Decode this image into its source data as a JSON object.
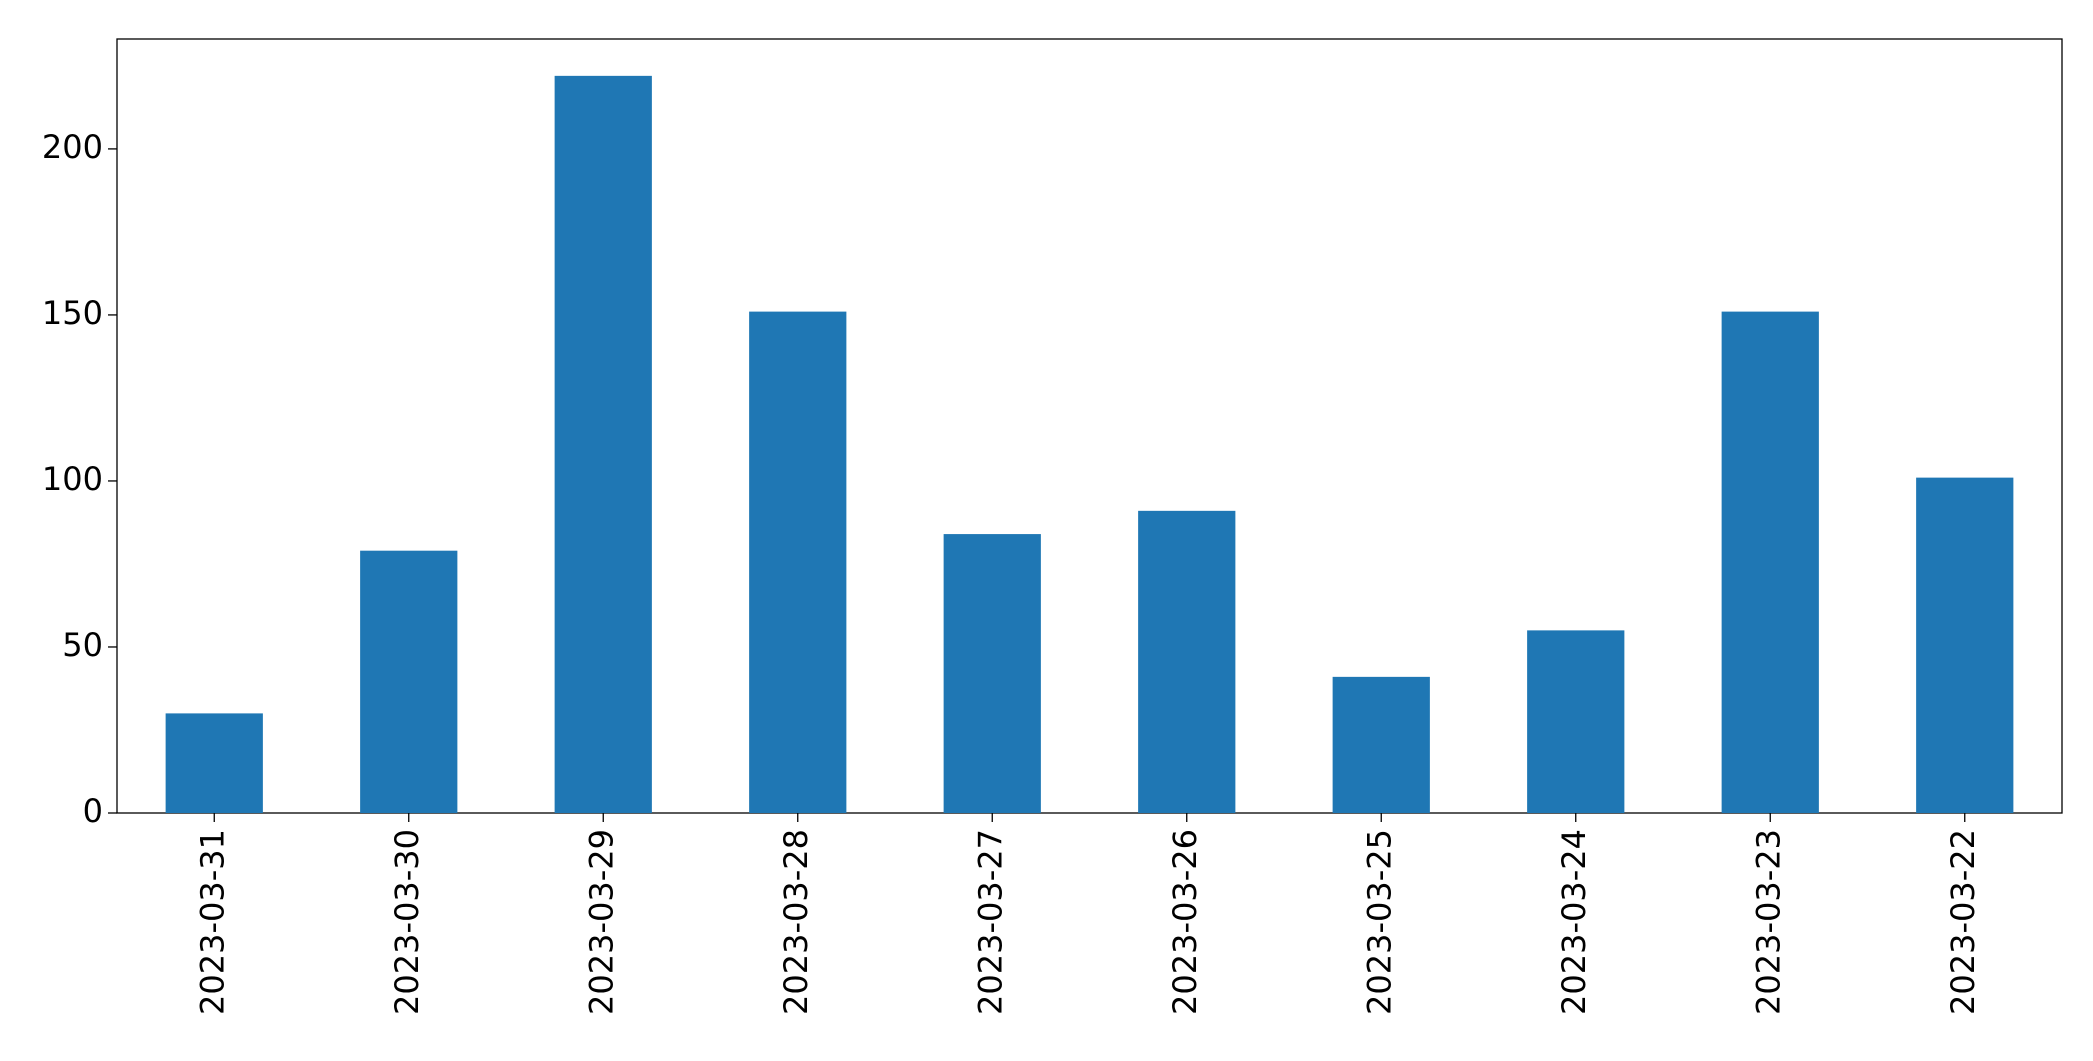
{
  "chart_data": {
    "type": "bar",
    "categories": [
      "2023-03-31",
      "2023-03-30",
      "2023-03-29",
      "2023-03-28",
      "2023-03-27",
      "2023-03-26",
      "2023-03-25",
      "2023-03-24",
      "2023-03-23",
      "2023-03-22"
    ],
    "values": [
      30,
      79,
      222,
      151,
      84,
      91,
      41,
      55,
      151,
      101
    ],
    "color": "#1f77b4",
    "ylim": [
      0,
      233.1
    ],
    "yticks": [
      0,
      50,
      100,
      150,
      200
    ],
    "grid": false
  }
}
